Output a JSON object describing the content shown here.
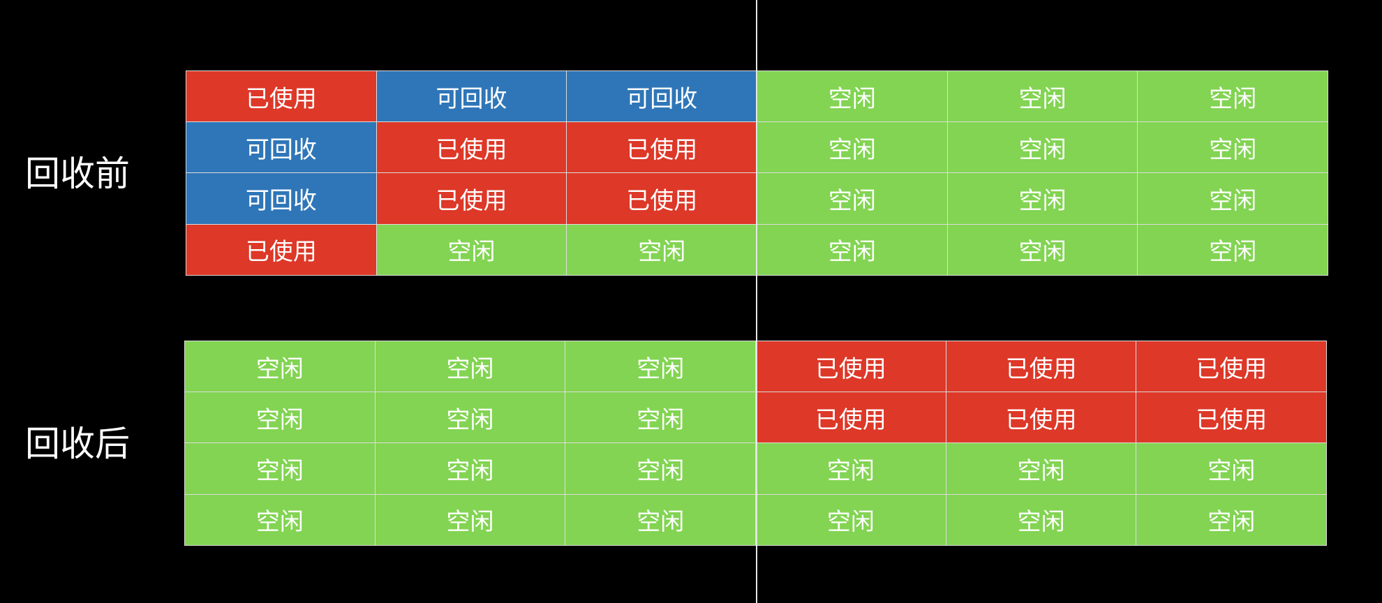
{
  "colors": {
    "background": "#000000",
    "used": "#dd3828",
    "reclaimable": "#2f76b8",
    "free": "#82d452",
    "divider": "#e6e6e6"
  },
  "status_labels": {
    "used": "已使用",
    "reclaimable": "可回收",
    "free": "空闲"
  },
  "sections": [
    {
      "label": "回收前",
      "rows": [
        [
          "used",
          "reclaimable",
          "reclaimable",
          "free",
          "free",
          "free"
        ],
        [
          "reclaimable",
          "used",
          "used",
          "free",
          "free",
          "free"
        ],
        [
          "reclaimable",
          "used",
          "used",
          "free",
          "free",
          "free"
        ],
        [
          "used",
          "free",
          "free",
          "free",
          "free",
          "free"
        ]
      ]
    },
    {
      "label": "回收后",
      "rows": [
        [
          "free",
          "free",
          "free",
          "used",
          "used",
          "used"
        ],
        [
          "free",
          "free",
          "free",
          "used",
          "used",
          "used"
        ],
        [
          "free",
          "free",
          "free",
          "free",
          "free",
          "free"
        ],
        [
          "free",
          "free",
          "free",
          "free",
          "free",
          "free"
        ]
      ]
    }
  ]
}
